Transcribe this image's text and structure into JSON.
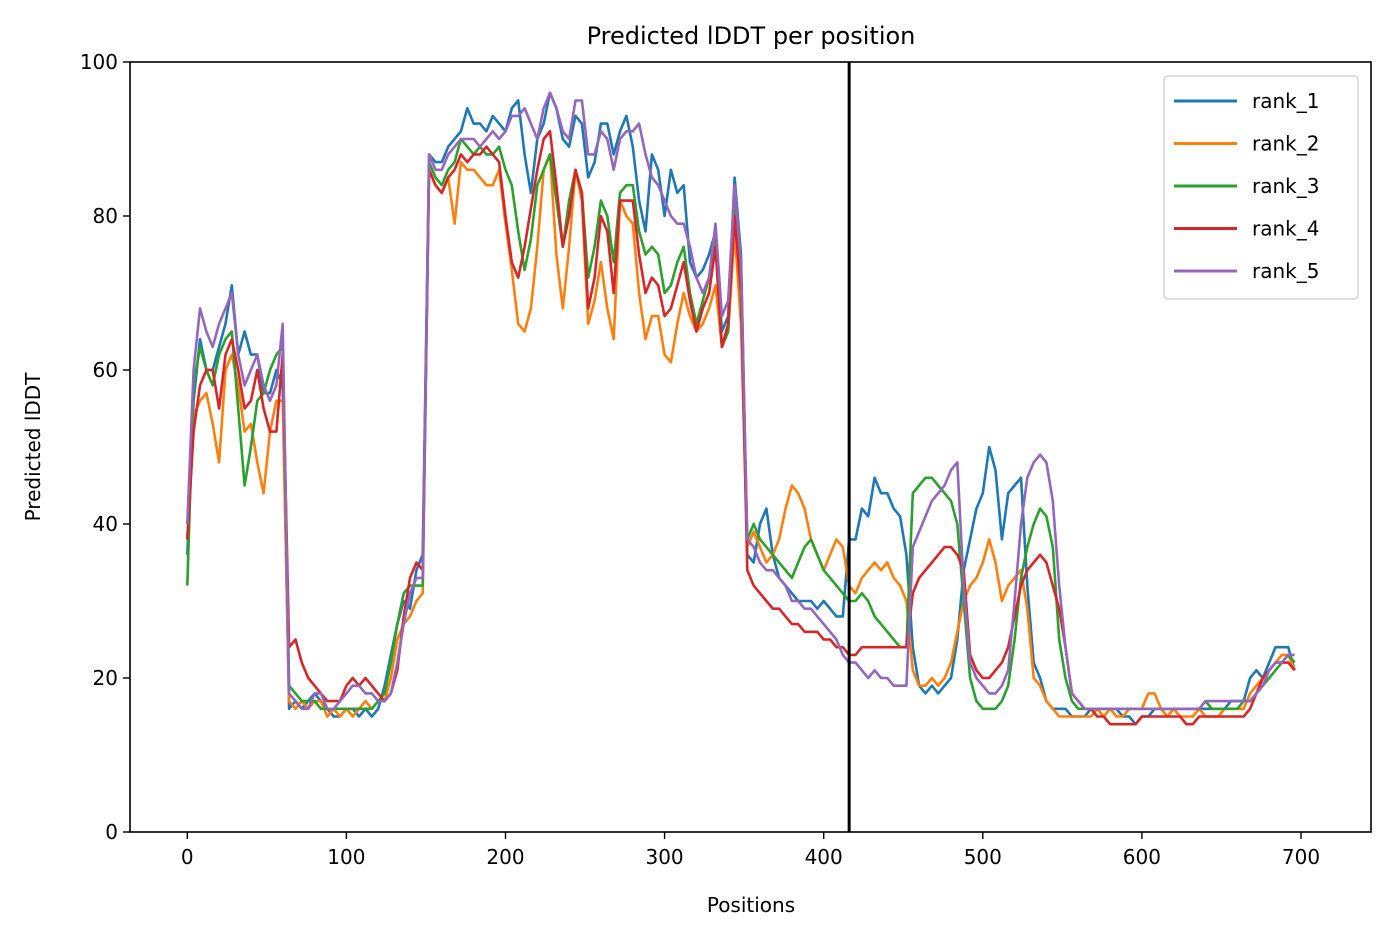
{
  "chart_data": {
    "type": "line",
    "title": "Predicted lDDT per position",
    "xlabel": "Positions",
    "ylabel": "Predicted lDDT",
    "xlim": [
      -36,
      744
    ],
    "ylim": [
      0,
      100
    ],
    "xticks": [
      0,
      100,
      200,
      300,
      400,
      500,
      600,
      700
    ],
    "yticks": [
      0,
      20,
      40,
      60,
      80,
      100
    ],
    "grid": false,
    "legend_position": "top-right",
    "vline": 416,
    "x_start": 0,
    "x_step": 4,
    "series": [
      {
        "name": "rank_1",
        "color": "#1f77b4",
        "values": [
          36,
          56,
          64,
          60,
          60,
          63,
          66,
          71,
          62,
          65,
          62,
          62,
          57,
          57,
          60,
          58,
          16,
          17,
          16,
          17,
          18,
          17,
          16,
          15,
          15,
          16,
          16,
          15,
          16,
          15,
          16,
          19,
          23,
          27,
          30,
          29,
          34,
          36,
          88,
          87,
          87,
          89,
          90,
          91,
          94,
          92,
          92,
          91,
          93,
          92,
          91,
          94,
          95,
          88,
          83,
          90,
          92,
          96,
          94,
          90,
          89,
          93,
          92,
          85,
          87,
          92,
          92,
          88,
          91,
          93,
          89,
          82,
          78,
          88,
          86,
          80,
          86,
          83,
          84,
          74,
          72,
          73,
          75,
          78,
          65,
          67,
          85,
          75,
          36,
          35,
          40,
          42,
          36,
          33,
          32,
          31,
          30,
          30,
          30,
          29,
          30,
          29,
          28,
          28,
          38,
          38,
          42,
          41,
          46,
          44,
          44,
          42,
          41,
          36,
          24,
          19,
          18,
          19,
          18,
          19,
          20,
          25,
          34,
          38,
          42,
          44,
          50,
          47,
          38,
          44,
          45,
          46,
          32,
          22,
          20,
          17,
          16,
          16,
          16,
          15,
          15,
          15,
          16,
          16,
          16,
          16,
          16,
          15,
          15,
          14,
          15,
          15,
          16,
          16,
          16,
          16,
          16,
          16,
          16,
          16,
          16,
          16,
          16,
          16,
          17,
          17,
          17,
          20,
          21,
          20,
          22,
          24,
          24,
          24,
          21
        ]
      },
      {
        "name": "rank_2",
        "color": "#ff7f0e",
        "values": [
          38,
          54,
          56,
          57,
          53,
          48,
          60,
          62,
          58,
          52,
          53,
          48,
          44,
          52,
          56,
          56,
          17,
          16,
          17,
          16,
          17,
          17,
          15,
          16,
          15,
          16,
          15,
          16,
          17,
          16,
          17,
          17,
          20,
          25,
          27,
          28,
          30,
          31,
          86,
          84,
          83,
          85,
          79,
          87,
          86,
          86,
          85,
          84,
          84,
          86,
          79,
          73,
          66,
          65,
          68,
          76,
          86,
          88,
          75,
          68,
          76,
          86,
          82,
          66,
          69,
          74,
          68,
          64,
          82,
          80,
          79,
          70,
          64,
          67,
          67,
          62,
          61,
          66,
          70,
          67,
          65,
          66,
          68,
          71,
          63,
          65,
          78,
          66,
          37,
          39,
          37,
          35,
          36,
          38,
          42,
          45,
          44,
          42,
          38,
          36,
          34,
          36,
          38,
          37,
          32,
          31,
          33,
          34,
          35,
          34,
          35,
          33,
          32,
          30,
          21,
          19,
          19,
          20,
          19,
          20,
          22,
          26,
          30,
          32,
          33,
          35,
          38,
          35,
          30,
          32,
          33,
          34,
          29,
          20,
          19,
          17,
          16,
          15,
          15,
          15,
          15,
          15,
          15,
          16,
          15,
          16,
          15,
          15,
          16,
          16,
          16,
          18,
          18,
          16,
          15,
          16,
          15,
          15,
          15,
          16,
          15,
          15,
          15,
          16,
          16,
          16,
          16,
          18,
          19,
          20,
          21,
          22,
          23,
          23,
          21
        ]
      },
      {
        "name": "rank_3",
        "color": "#2ca02c",
        "values": [
          32,
          58,
          63,
          60,
          58,
          62,
          64,
          65,
          55,
          45,
          50,
          56,
          57,
          60,
          62,
          63,
          19,
          18,
          17,
          17,
          17,
          16,
          16,
          16,
          16,
          16,
          16,
          16,
          16,
          16,
          17,
          18,
          22,
          27,
          31,
          32,
          32,
          32,
          87,
          85,
          84,
          86,
          87,
          90,
          89,
          88,
          89,
          88,
          88,
          89,
          86,
          84,
          78,
          73,
          77,
          84,
          86,
          88,
          82,
          76,
          82,
          86,
          83,
          72,
          76,
          82,
          80,
          74,
          83,
          84,
          84,
          78,
          75,
          76,
          75,
          70,
          71,
          74,
          76,
          70,
          66,
          69,
          72,
          78,
          63,
          65,
          82,
          70,
          38,
          40,
          38,
          37,
          36,
          35,
          34,
          33,
          35,
          37,
          38,
          36,
          34,
          33,
          32,
          31,
          30,
          30,
          31,
          30,
          28,
          27,
          26,
          25,
          24,
          24,
          44,
          45,
          46,
          46,
          45,
          44,
          43,
          40,
          30,
          20,
          17,
          16,
          16,
          16,
          17,
          19,
          25,
          33,
          37,
          40,
          42,
          41,
          37,
          25,
          20,
          17,
          16,
          16,
          16,
          16,
          16,
          16,
          16,
          16,
          16,
          16,
          16,
          16,
          16,
          16,
          16,
          16,
          16,
          16,
          16,
          16,
          17,
          16,
          16,
          16,
          16,
          16,
          17,
          17,
          18,
          19,
          20,
          21,
          22,
          23,
          22
        ]
      },
      {
        "name": "rank_4",
        "color": "#d62728",
        "values": [
          38,
          52,
          58,
          60,
          60,
          55,
          62,
          64,
          60,
          55,
          56,
          60,
          55,
          52,
          52,
          62,
          24,
          25,
          22,
          20,
          19,
          18,
          17,
          17,
          17,
          19,
          20,
          19,
          20,
          19,
          18,
          17,
          18,
          21,
          28,
          33,
          35,
          34,
          86,
          84,
          83,
          85,
          86,
          88,
          87,
          88,
          88,
          89,
          88,
          87,
          80,
          74,
          72,
          76,
          81,
          86,
          90,
          91,
          84,
          76,
          80,
          86,
          83,
          68,
          72,
          80,
          78,
          70,
          82,
          82,
          82,
          75,
          70,
          72,
          71,
          67,
          68,
          71,
          74,
          69,
          65,
          68,
          70,
          76,
          63,
          66,
          80,
          70,
          34,
          32,
          31,
          30,
          29,
          29,
          28,
          27,
          27,
          26,
          26,
          26,
          25,
          25,
          24,
          24,
          23,
          23,
          24,
          24,
          24,
          24,
          24,
          24,
          24,
          24,
          31,
          33,
          34,
          35,
          36,
          37,
          37,
          36,
          34,
          23,
          21,
          20,
          20,
          21,
          22,
          24,
          28,
          32,
          34,
          35,
          36,
          35,
          32,
          29,
          24,
          18,
          17,
          16,
          16,
          15,
          15,
          14,
          14,
          14,
          14,
          14,
          15,
          15,
          15,
          15,
          15,
          15,
          15,
          14,
          14,
          15,
          15,
          15,
          15,
          15,
          15,
          15,
          15,
          16,
          18,
          20,
          21,
          22,
          22,
          22,
          21
        ]
      },
      {
        "name": "rank_5",
        "color": "#9467bd",
        "values": [
          40,
          60,
          68,
          65,
          63,
          66,
          68,
          70,
          62,
          58,
          60,
          62,
          58,
          56,
          58,
          66,
          18,
          17,
          16,
          16,
          18,
          18,
          16,
          16,
          17,
          18,
          19,
          19,
          18,
          18,
          17,
          17,
          18,
          22,
          27,
          31,
          33,
          33,
          88,
          86,
          86,
          88,
          89,
          90,
          90,
          90,
          89,
          90,
          91,
          90,
          91,
          93,
          93,
          94,
          92,
          90,
          94,
          96,
          94,
          91,
          90,
          95,
          95,
          88,
          88,
          91,
          90,
          86,
          90,
          91,
          91,
          92,
          88,
          85,
          84,
          82,
          80,
          79,
          79,
          76,
          72,
          70,
          72,
          79,
          67,
          69,
          84,
          74,
          38,
          37,
          35,
          34,
          34,
          33,
          32,
          30,
          30,
          29,
          29,
          28,
          27,
          26,
          25,
          23,
          22,
          22,
          21,
          20,
          21,
          20,
          20,
          19,
          19,
          19,
          37,
          39,
          41,
          43,
          44,
          45,
          47,
          48,
          32,
          22,
          20,
          19,
          18,
          18,
          19,
          21,
          30,
          40,
          46,
          48,
          49,
          48,
          43,
          32,
          24,
          18,
          17,
          16,
          16,
          16,
          16,
          16,
          16,
          16,
          16,
          16,
          16,
          16,
          16,
          16,
          16,
          16,
          16,
          16,
          16,
          16,
          17,
          17,
          17,
          17,
          17,
          17,
          17,
          17,
          18,
          19,
          21,
          22,
          22,
          23,
          23
        ]
      }
    ]
  }
}
